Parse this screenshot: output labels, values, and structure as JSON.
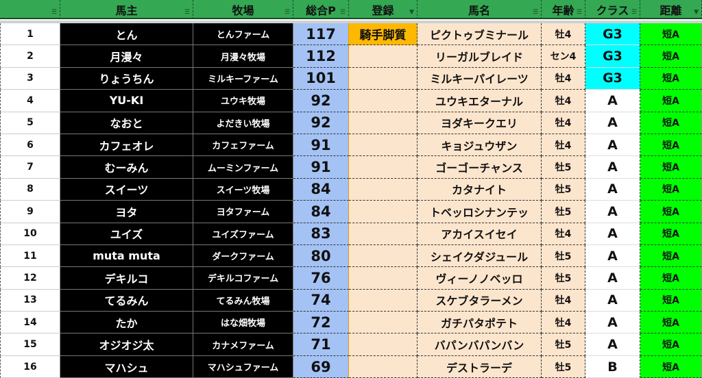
{
  "headers": [
    "",
    "馬主",
    "牧場",
    "総合P",
    "登録",
    "馬名",
    "年齢",
    "クラス",
    "距離"
  ],
  "filter_active": [
    false,
    false,
    false,
    false,
    true,
    false,
    false,
    false,
    true
  ],
  "colors": {
    "header": "#34a853",
    "points": "#a4c2f4",
    "registered": "#ffb800",
    "peach": "#fce5cd",
    "g3": "#00ffff",
    "distance": "#00ff00"
  },
  "rows": [
    {
      "n": "1",
      "owner": "とん",
      "farm": "とんファーム",
      "points": "117",
      "reg": "騎手脚質",
      "horse": "ピクトゥブミナール",
      "age": "牡4",
      "class": "G3",
      "dist": "短A"
    },
    {
      "n": "2",
      "owner": "月漫々",
      "farm": "月漫々牧場",
      "points": "112",
      "reg": "",
      "horse": "リーガルブレイド",
      "age": "セン4",
      "class": "G3",
      "dist": "短A"
    },
    {
      "n": "3",
      "owner": "りょうちん",
      "farm": "ミルキーファーム",
      "points": "101",
      "reg": "",
      "horse": "ミルキーパイレーツ",
      "age": "牡4",
      "class": "G3",
      "dist": "短A"
    },
    {
      "n": "4",
      "owner": "YU-KI",
      "farm": "ユウキ牧場",
      "points": "92",
      "reg": "",
      "horse": "ユウキエターナル",
      "age": "牡4",
      "class": "A",
      "dist": "短A"
    },
    {
      "n": "5",
      "owner": "なおと",
      "farm": "よだきい牧場",
      "points": "92",
      "reg": "",
      "horse": "ヨダキークエリ",
      "age": "牡4",
      "class": "A",
      "dist": "短A"
    },
    {
      "n": "6",
      "owner": "カフェオレ",
      "farm": "カフェファーム",
      "points": "91",
      "reg": "",
      "horse": "キョジュウザン",
      "age": "牡4",
      "class": "A",
      "dist": "短A"
    },
    {
      "n": "7",
      "owner": "むーみん",
      "farm": "ムーミンファーム",
      "points": "91",
      "reg": "",
      "horse": "ゴーゴーチャンス",
      "age": "牡5",
      "class": "A",
      "dist": "短A"
    },
    {
      "n": "8",
      "owner": "スイーツ",
      "farm": "スイーツ牧場",
      "points": "84",
      "reg": "",
      "horse": "カタナイト",
      "age": "牡5",
      "class": "A",
      "dist": "短A"
    },
    {
      "n": "9",
      "owner": "ヨタ",
      "farm": "ヨタファーム",
      "points": "84",
      "reg": "",
      "horse": "トベッロシナンテッ",
      "age": "牡5",
      "class": "A",
      "dist": "短A"
    },
    {
      "n": "10",
      "owner": "ユイズ",
      "farm": "ユイズファーム",
      "points": "83",
      "reg": "",
      "horse": "アカイスイセイ",
      "age": "牡4",
      "class": "A",
      "dist": "短A"
    },
    {
      "n": "11",
      "owner": "muta muta",
      "farm": "ダークファーム",
      "points": "80",
      "reg": "",
      "horse": "シェイクダジュール",
      "age": "牡5",
      "class": "A",
      "dist": "短A"
    },
    {
      "n": "12",
      "owner": "デキルコ",
      "farm": "デキルコファーム",
      "points": "76",
      "reg": "",
      "horse": "ヴィーノノベッロ",
      "age": "牡5",
      "class": "A",
      "dist": "短A"
    },
    {
      "n": "13",
      "owner": "てるみん",
      "farm": "てるみん牧場",
      "points": "74",
      "reg": "",
      "horse": "スケブタラーメン",
      "age": "牡4",
      "class": "A",
      "dist": "短A"
    },
    {
      "n": "14",
      "owner": "たか",
      "farm": "はな畑牧場",
      "points": "72",
      "reg": "",
      "horse": "ガチパタポテト",
      "age": "牡4",
      "class": "A",
      "dist": "短A"
    },
    {
      "n": "15",
      "owner": "オジオジ太",
      "farm": "カナメファーム",
      "points": "71",
      "reg": "",
      "horse": "バパンバパンバン",
      "age": "牡5",
      "class": "A",
      "dist": "短A"
    },
    {
      "n": "16",
      "owner": "マハシュ",
      "farm": "マハシュファーム",
      "points": "69",
      "reg": "",
      "horse": "デストラーデ",
      "age": "牡5",
      "class": "B",
      "dist": "短A"
    }
  ]
}
